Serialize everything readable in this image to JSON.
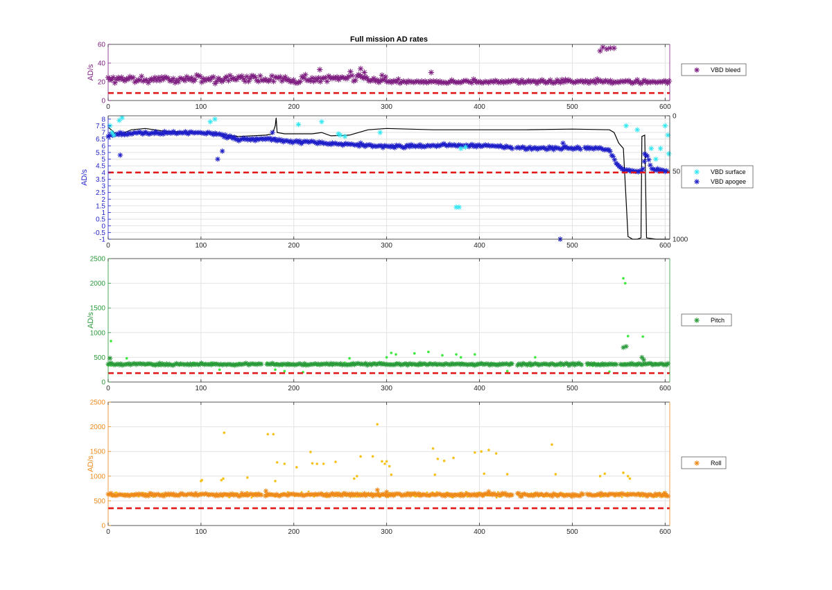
{
  "figure": {
    "title": "Full mission AD rates",
    "colors": {
      "bleed": "#7e1e80",
      "surface": "#33e6f2",
      "apogee": "#1f1fc8",
      "pitch_star": "#2a9a3a",
      "pitch_dot": "#3bea3b",
      "roll_star": "#ee8a1a",
      "roll_dot": "#f6c21a",
      "threshold": "#e31a1a",
      "depth": "#000000"
    }
  },
  "chart_data": [
    {
      "type": "scatter",
      "name": "bleed",
      "xlim": [
        0,
        605
      ],
      "ylim": [
        0,
        60
      ],
      "ylabel": "AD/s",
      "xticks": [
        0,
        100,
        200,
        300,
        400,
        500,
        600
      ],
      "yticks": [
        0,
        20,
        40,
        60
      ],
      "grid": true,
      "legend_position": "right",
      "legend": [
        "VBD bleed"
      ],
      "threshold": 8,
      "series": [
        {
          "name": "VBD bleed",
          "segments": [
            {
              "x0": 0,
              "x1": 300,
              "base": 23,
              "jitter": 5
            },
            {
              "x0": 300,
              "x1": 605,
              "base": 20,
              "jitter": 2
            }
          ],
          "extra_points": [
            [
              530,
              53
            ],
            [
              533,
              57
            ],
            [
              537,
              55
            ],
            [
              541,
              56
            ],
            [
              545,
              56
            ],
            [
              228,
              33
            ],
            [
              272,
              34
            ],
            [
              276,
              30
            ],
            [
              295,
              27
            ],
            [
              348,
              30
            ]
          ]
        }
      ]
    },
    {
      "type": "scatter",
      "name": "vbd",
      "xlim": [
        0,
        605
      ],
      "ylim": [
        -1,
        8.25
      ],
      "ylabel": "AD/s",
      "xticks": [
        0,
        100,
        200,
        300,
        400,
        500,
        600
      ],
      "yticks": [
        -1,
        -0.5,
        0,
        0.5,
        1,
        1.5,
        2,
        2.5,
        3,
        3.5,
        4,
        4.5,
        5,
        5.5,
        6,
        6.5,
        7,
        7.5,
        8
      ],
      "ytick_labels": [
        "-1",
        "-0.5",
        "0",
        "0.5",
        "1",
        "1.5",
        "2",
        "2.5",
        "3",
        "3.5",
        "4",
        "4.5",
        "5",
        "5.5",
        "6",
        "6.5",
        "7",
        "7.5",
        "8"
      ],
      "y2ticks": [
        0,
        50,
        1000
      ],
      "y2tick_labels": [
        "0",
        "50",
        "1000"
      ],
      "grid": true,
      "legend_position": "right",
      "legend": [
        "VBD surface",
        "VBD apogee"
      ],
      "threshold": 4,
      "series": [
        {
          "name": "VBD surface",
          "points": [
            [
              2,
              7.5
            ],
            [
              4,
              7.0
            ],
            [
              6,
              6.8
            ],
            [
              12,
              7.9
            ],
            [
              15,
              8.1
            ],
            [
              110,
              7.8
            ],
            [
              115,
              8.0
            ],
            [
              205,
              7.6
            ],
            [
              230,
              7.8
            ],
            [
              248,
              6.9
            ],
            [
              250,
              6.8
            ],
            [
              255,
              6.7
            ],
            [
              293,
              7.0
            ],
            [
              375,
              1.4
            ],
            [
              378,
              1.4
            ],
            [
              380,
              5.8
            ],
            [
              385,
              5.9
            ],
            [
              558,
              7.5
            ],
            [
              570,
              7.2
            ],
            [
              585,
              5.8
            ],
            [
              590,
              5.0
            ],
            [
              595,
              5.8
            ],
            [
              600,
              7.5
            ],
            [
              603,
              6.8
            ],
            [
              604,
              5.4
            ]
          ]
        },
        {
          "name": "VBD apogee",
          "trend": [
            [
              0,
              6.8
            ],
            [
              30,
              6.95
            ],
            [
              60,
              6.95
            ],
            [
              100,
              7.0
            ],
            [
              120,
              6.85
            ],
            [
              140,
              6.5
            ],
            [
              170,
              6.5
            ],
            [
              200,
              6.3
            ],
            [
              250,
              6.15
            ],
            [
              300,
              5.95
            ],
            [
              340,
              6.0
            ],
            [
              370,
              6.05
            ],
            [
              380,
              6.05
            ],
            [
              420,
              5.95
            ],
            [
              440,
              5.85
            ],
            [
              480,
              5.8
            ],
            [
              520,
              5.85
            ],
            [
              540,
              5.7
            ],
            [
              548,
              4.6
            ],
            [
              555,
              4.2
            ],
            [
              565,
              4.1
            ],
            [
              575,
              4.05
            ],
            [
              580,
              5.5
            ],
            [
              585,
              4.3
            ],
            [
              600,
              4.1
            ]
          ],
          "extra_points": [
            [
              13,
              5.3
            ],
            [
              118,
              5.0
            ],
            [
              123,
              5.6
            ],
            [
              177,
              7.0
            ],
            [
              180,
              6.5
            ],
            [
              487,
              -1
            ],
            [
              490,
              6.2
            ],
            [
              578,
              5.4
            ]
          ]
        },
        {
          "name": "depth",
          "y2lim": [
            0,
            1000
          ],
          "line": [
            [
              0,
              7.4
            ],
            [
              10,
              6.8
            ],
            [
              25,
              7.2
            ],
            [
              40,
              7.3
            ],
            [
              60,
              7.1
            ],
            [
              100,
              7.0
            ],
            [
              120,
              6.9
            ],
            [
              140,
              6.7
            ],
            [
              170,
              6.8
            ],
            [
              177,
              6.9
            ],
            [
              180,
              7.5
            ],
            [
              181,
              8.1
            ],
            [
              182,
              7.0
            ],
            [
              190,
              6.9
            ],
            [
              220,
              6.9
            ],
            [
              230,
              7.0
            ],
            [
              240,
              6.75
            ],
            [
              260,
              6.8
            ],
            [
              280,
              7.2
            ],
            [
              300,
              7.3
            ],
            [
              350,
              7.2
            ],
            [
              400,
              7.2
            ],
            [
              450,
              7.2
            ],
            [
              500,
              7.25
            ],
            [
              540,
              7.2
            ],
            [
              545,
              7.0
            ],
            [
              550,
              6.2
            ],
            [
              555,
              5.8
            ],
            [
              560,
              -0.8
            ],
            [
              565,
              -1.0
            ],
            [
              570,
              -1.0
            ],
            [
              574,
              -0.9
            ],
            [
              575,
              6.7
            ],
            [
              578,
              6.8
            ],
            [
              580,
              -0.9
            ],
            [
              590,
              -1.0
            ],
            [
              605,
              -1.0
            ]
          ]
        }
      ]
    },
    {
      "type": "scatter",
      "name": "pitch",
      "xlim": [
        0,
        605
      ],
      "ylim": [
        0,
        2500
      ],
      "ylabel": "AD/s",
      "xticks": [
        0,
        100,
        200,
        300,
        400,
        500,
        600
      ],
      "yticks": [
        0,
        500,
        1000,
        1500,
        2000,
        2500
      ],
      "grid": true,
      "legend_position": "right",
      "legend": [
        "Pitch"
      ],
      "threshold": 180,
      "series": [
        {
          "name": "Pitch",
          "base": 360,
          "jitter": 25,
          "gaps": [
            [
              166,
              170
            ],
            [
              436,
              440
            ],
            [
              510,
              515
            ],
            [
              548,
              552
            ]
          ],
          "extra_points": [
            [
              555,
              700
            ],
            [
              558,
              720
            ],
            [
              575,
              500
            ],
            [
              577,
              450
            ],
            [
              2,
              480
            ]
          ]
        },
        {
          "name": "Pitch dots",
          "points": [
            [
              3,
              830
            ],
            [
              555,
              2100
            ],
            [
              557,
              2000
            ],
            [
              560,
              930
            ],
            [
              576,
              920
            ],
            [
              20,
              480
            ],
            [
              180,
              250
            ],
            [
              190,
              220
            ],
            [
              260,
              480
            ],
            [
              300,
              500
            ],
            [
              305,
              590
            ],
            [
              310,
              560
            ],
            [
              330,
              580
            ],
            [
              345,
              610
            ],
            [
              360,
              540
            ],
            [
              375,
              560
            ],
            [
              380,
              500
            ],
            [
              395,
              560
            ],
            [
              430,
              220
            ],
            [
              460,
              500
            ],
            [
              540,
              210
            ],
            [
              120,
              250
            ],
            [
              210,
              200
            ]
          ]
        }
      ]
    },
    {
      "type": "scatter",
      "name": "roll",
      "xlim": [
        0,
        605
      ],
      "ylim": [
        0,
        2500
      ],
      "ylabel": "AD/s",
      "xticks": [
        0,
        100,
        200,
        300,
        400,
        500,
        600
      ],
      "yticks": [
        0,
        500,
        1000,
        1500,
        2000,
        2500
      ],
      "grid": true,
      "legend_position": "right",
      "legend": [
        "Roll"
      ],
      "threshold": 350,
      "series": [
        {
          "name": "Roll",
          "base": 625,
          "jitter": 35,
          "gaps": [
            [
              166,
              169
            ],
            [
              436,
              440
            ],
            [
              512,
              515
            ]
          ],
          "extra_points": [
            [
              170,
              700
            ],
            [
              290,
              720
            ],
            [
              300,
              680
            ],
            [
              410,
              690
            ]
          ]
        },
        {
          "name": "Roll dots",
          "points": [
            [
              100,
              900
            ],
            [
              101,
              920
            ],
            [
              125,
              1880
            ],
            [
              122,
              920
            ],
            [
              124,
              950
            ],
            [
              150,
              970
            ],
            [
              172,
              1850
            ],
            [
              178,
              1850
            ],
            [
              180,
              900
            ],
            [
              182,
              1280
            ],
            [
              190,
              1250
            ],
            [
              203,
              1180
            ],
            [
              218,
              1490
            ],
            [
              220,
              1260
            ],
            [
              225,
              1250
            ],
            [
              232,
              1250
            ],
            [
              245,
              1290
            ],
            [
              265,
              950
            ],
            [
              268,
              1000
            ],
            [
              272,
              1400
            ],
            [
              285,
              1400
            ],
            [
              290,
              2050
            ],
            [
              295,
              1300
            ],
            [
              298,
              1250
            ],
            [
              300,
              1300
            ],
            [
              303,
              1200
            ],
            [
              305,
              1030
            ],
            [
              350,
              1560
            ],
            [
              352,
              1030
            ],
            [
              355,
              1350
            ],
            [
              362,
              1310
            ],
            [
              372,
              1370
            ],
            [
              395,
              1480
            ],
            [
              402,
              1500
            ],
            [
              405,
              1050
            ],
            [
              410,
              1530
            ],
            [
              418,
              1460
            ],
            [
              430,
              1040
            ],
            [
              478,
              1640
            ],
            [
              482,
              1040
            ],
            [
              530,
              1000
            ],
            [
              535,
              1050
            ],
            [
              555,
              1070
            ],
            [
              562,
              950
            ],
            [
              560,
              1000
            ]
          ]
        }
      ]
    }
  ],
  "legends": {
    "bleed": [
      "VBD bleed"
    ],
    "vbd": [
      "VBD surface",
      "VBD apogee"
    ],
    "pitch": [
      "Pitch"
    ],
    "roll": [
      "Roll"
    ]
  }
}
